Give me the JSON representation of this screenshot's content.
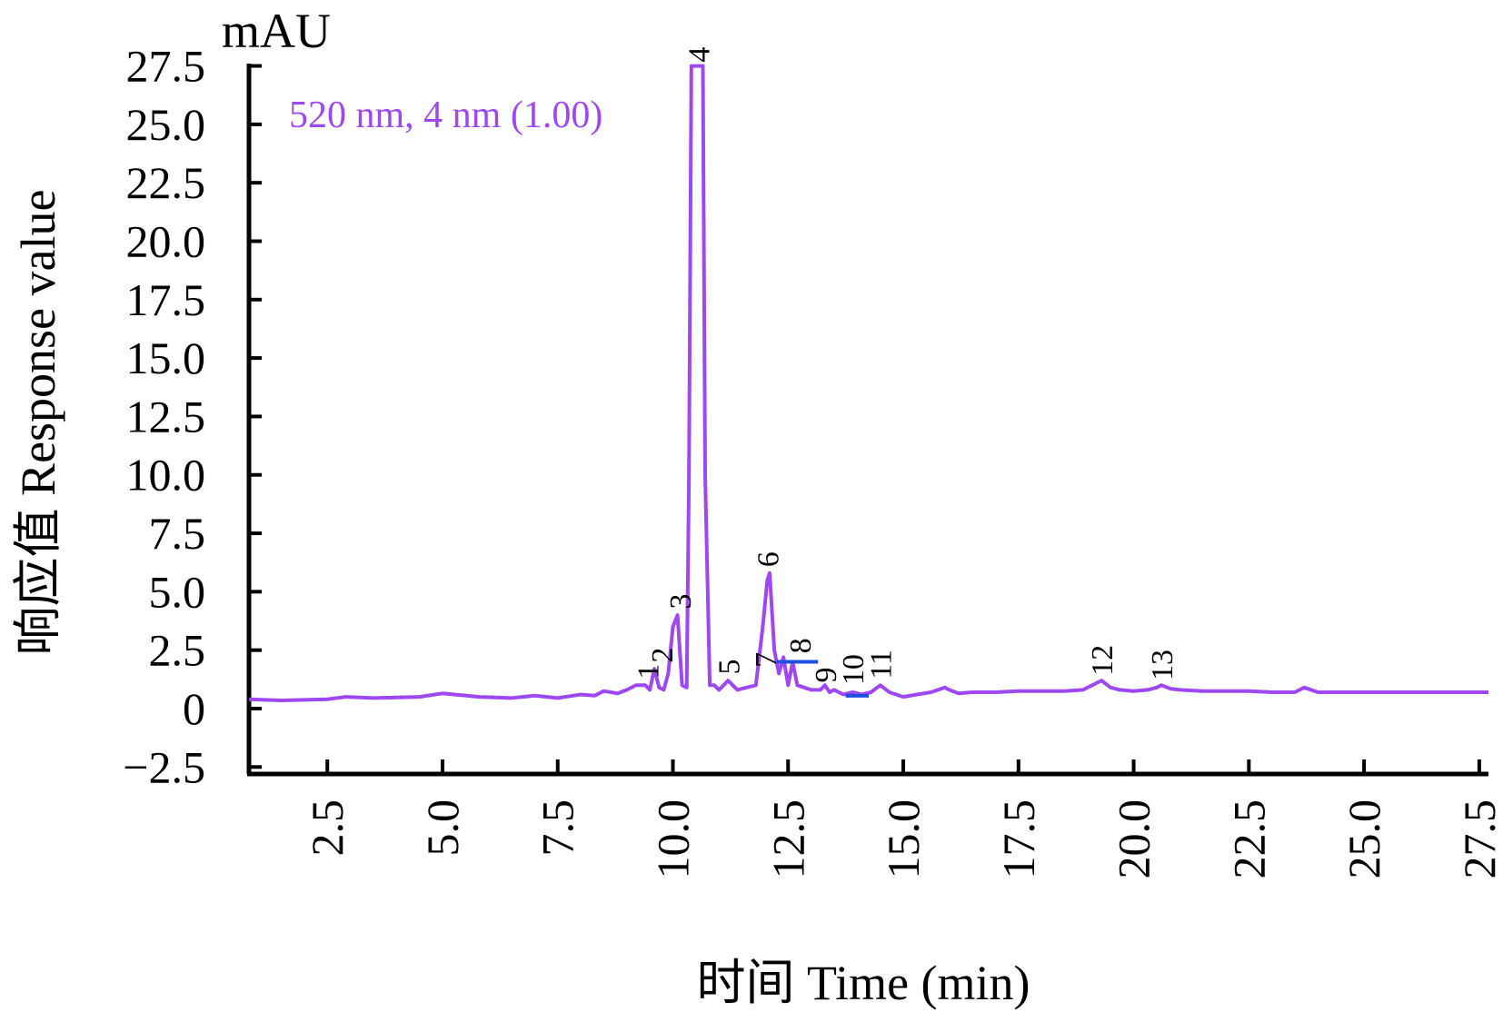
{
  "chart_data": {
    "type": "line",
    "ylabel": "响应值 Response value",
    "xlabel": "时间 Time (min)",
    "yunit": "mAU",
    "legend": "520 nm, 4 nm (1.00)",
    "legend_position": "top-left",
    "grid": false,
    "xlim": [
      0.8,
      27.7
    ],
    "ylim": [
      -2.8,
      27.6
    ],
    "xticks": [
      2.5,
      5.0,
      7.5,
      10.0,
      12.5,
      15.0,
      17.5,
      20.0,
      22.5,
      25.0,
      27.5
    ],
    "xtick_labels": [
      "2.5",
      "5.0",
      "7.5",
      "10.0",
      "12.5",
      "15.0",
      "17.5",
      "20.0",
      "22.5",
      "25.0",
      "27.5"
    ],
    "yticks": [
      -2.5,
      0,
      2.5,
      5.0,
      7.5,
      10.0,
      12.5,
      15.0,
      17.5,
      20.0,
      22.5,
      25.0,
      27.5
    ],
    "ytick_labels": [
      "−2.5",
      "0",
      "2.5",
      "5.0",
      "7.5",
      "10.0",
      "12.5",
      "15.0",
      "17.5",
      "20.0",
      "22.5",
      "25.0",
      "27.5"
    ],
    "colors": {
      "trace": "#9d48f0",
      "marker": "#1f4fe0",
      "axis": "#000000"
    },
    "series": [
      {
        "x": [
          0.8,
          1.5,
          2.5,
          2.9,
          3.5,
          4.5,
          5.0,
          5.8,
          6.5,
          7.0,
          7.5,
          8.0,
          8.3,
          8.5,
          8.8,
          9.0,
          9.2,
          9.4,
          9.5,
          9.6,
          9.7,
          9.8,
          9.9,
          10.0,
          10.1,
          10.2,
          10.3,
          10.35,
          10.4,
          10.45,
          10.5,
          10.6,
          10.65,
          10.7,
          10.8,
          10.9,
          11.0,
          11.1,
          11.2,
          11.3,
          11.4,
          11.6,
          11.8,
          11.95,
          12.05,
          12.1,
          12.2,
          12.3,
          12.4,
          12.5,
          12.6,
          12.7,
          12.85,
          13.0,
          13.2,
          13.3,
          13.4,
          13.5,
          13.7,
          13.9,
          14.1,
          14.3,
          14.5,
          14.7,
          15.0,
          15.3,
          15.6,
          15.9,
          16.0,
          16.2,
          16.5,
          17.0,
          17.5,
          18.0,
          18.5,
          18.9,
          19.1,
          19.3,
          19.5,
          19.7,
          20.0,
          20.3,
          20.5,
          20.6,
          20.8,
          21.0,
          21.5,
          22.5,
          23.0,
          23.5,
          23.7,
          24.0,
          25.0,
          26.0,
          27.0,
          27.7
        ],
        "y": [
          0.4,
          0.35,
          0.4,
          0.5,
          0.45,
          0.5,
          0.65,
          0.5,
          0.45,
          0.55,
          0.45,
          0.6,
          0.55,
          0.75,
          0.65,
          0.8,
          1.0,
          1.0,
          0.8,
          1.7,
          0.9,
          0.8,
          1.5,
          3.5,
          4.0,
          1.0,
          0.9,
          10.0,
          27.5,
          27.5,
          27.5,
          27.5,
          27.5,
          10.0,
          1.0,
          1.0,
          0.8,
          1.0,
          1.2,
          1.0,
          0.8,
          0.9,
          1.0,
          3.5,
          5.5,
          5.8,
          2.5,
          1.5,
          2.2,
          1.0,
          2.0,
          1.0,
          0.9,
          0.8,
          0.8,
          1.0,
          0.7,
          0.8,
          0.6,
          0.7,
          0.6,
          0.7,
          1.0,
          0.7,
          0.5,
          0.6,
          0.7,
          0.9,
          0.8,
          0.65,
          0.7,
          0.7,
          0.75,
          0.75,
          0.75,
          0.8,
          1.0,
          1.2,
          0.9,
          0.8,
          0.75,
          0.8,
          0.9,
          1.0,
          0.85,
          0.8,
          0.75,
          0.75,
          0.7,
          0.7,
          0.9,
          0.7,
          0.7,
          0.7,
          0.7,
          0.7
        ]
      }
    ],
    "peaks": [
      {
        "label": "1",
        "x": 9.45,
        "y": 1.1
      },
      {
        "label": "2",
        "x": 9.75,
        "y": 1.8
      },
      {
        "label": "3",
        "x": 10.15,
        "y": 4.1
      },
      {
        "label": "4",
        "x": 10.55,
        "y": 27.5
      },
      {
        "label": "5",
        "x": 11.2,
        "y": 1.3
      },
      {
        "label": "6",
        "x": 12.05,
        "y": 5.9
      },
      {
        "label": "7",
        "x": 12.0,
        "y": 1.6
      },
      {
        "label": "8",
        "x": 12.75,
        "y": 2.2
      },
      {
        "label": "9",
        "x": 13.3,
        "y": 0.95
      },
      {
        "label": "10",
        "x": 13.9,
        "y": 0.85
      },
      {
        "label": "11",
        "x": 14.5,
        "y": 1.1
      },
      {
        "label": "12",
        "x": 19.3,
        "y": 1.25
      },
      {
        "label": "13",
        "x": 20.6,
        "y": 1.05
      }
    ],
    "integration_marks": [
      {
        "x_start": 12.25,
        "x_end": 13.15,
        "y": 2.0
      },
      {
        "x_start": 13.75,
        "x_end": 14.25,
        "y": 0.55
      }
    ]
  }
}
